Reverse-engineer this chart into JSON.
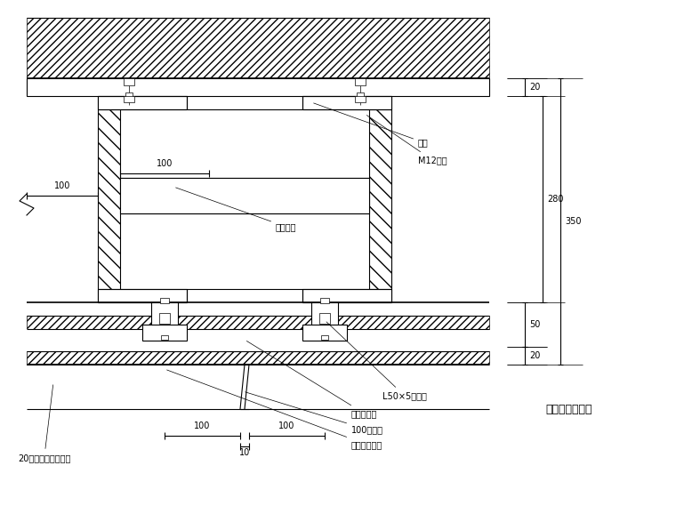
{
  "bg_color": "#ffffff",
  "lc": "#000000",
  "title": "石幕墙结构平面",
  "ann": {
    "dianhan": "电焊",
    "m12": "M12螺栓",
    "lianjie": "连接钢板",
    "L50": "L50×5次龙骨",
    "naihuo": "耐候胶嵌缝",
    "zhulonggu": "100主龙骨",
    "buxiu": "不锈钢连接件",
    "shimian": "20厚磨光花岗石饰面"
  },
  "dims": {
    "d350": "350",
    "d280": "280",
    "d20t": "20",
    "d50": "50",
    "d20b": "20",
    "d100a": "100",
    "d100b": "100",
    "d100c": "100",
    "d10": "10"
  },
  "fw": 7.6,
  "fh": 5.96
}
